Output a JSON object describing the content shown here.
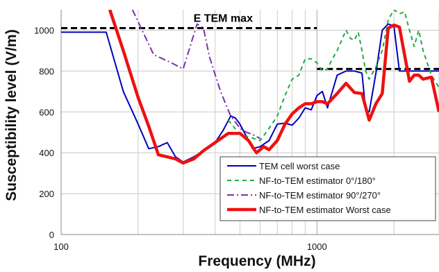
{
  "chart_data": {
    "type": "line",
    "xlabel": "Frequency (MHz)",
    "ylabel": "Susceptibility level (V/m)",
    "x_scale": "log",
    "xlim": [
      100,
      3000
    ],
    "ylim": [
      0,
      1100
    ],
    "x_ticks": [
      100,
      1000
    ],
    "y_ticks": [
      0,
      200,
      400,
      600,
      800,
      1000
    ],
    "grid": true,
    "legend_position": "bottom-right",
    "annotations": [
      {
        "text": "E TEM max",
        "x": 430,
        "y": 1040
      }
    ],
    "reference_lines": [
      {
        "name": "E TEM max (low band)",
        "x": [
          100,
          1000
        ],
        "y": 1010,
        "color": "#000000"
      },
      {
        "name": "E TEM max (high band)",
        "x": [
          1000,
          3000
        ],
        "y": 810,
        "color": "#000000"
      }
    ],
    "series": [
      {
        "name": "TEM cell worst case",
        "color": "#0000bb",
        "dash": "solid",
        "x": [
          100,
          150,
          175,
          200,
          220,
          240,
          260,
          280,
          300,
          330,
          360,
          400,
          430,
          460,
          480,
          500,
          530,
          560,
          600,
          650,
          700,
          750,
          800,
          850,
          900,
          950,
          1000,
          1050,
          1100,
          1200,
          1300,
          1400,
          1500,
          1550,
          1600,
          1700,
          1800,
          1900,
          2000,
          2100,
          2200,
          2500,
          3000
        ],
        "y": [
          990,
          990,
          700,
          540,
          420,
          430,
          450,
          380,
          355,
          380,
          410,
          450,
          510,
          580,
          570,
          540,
          480,
          420,
          430,
          460,
          540,
          545,
          535,
          570,
          620,
          610,
          680,
          700,
          620,
          780,
          800,
          800,
          790,
          610,
          600,
          790,
          1000,
          1030,
          1020,
          800,
          800,
          800,
          800
        ]
      },
      {
        "name": "NF-to-TEM estimator 0°/180°",
        "color": "#22aa44",
        "dash": "6,5",
        "x": [
          450,
          500,
          550,
          600,
          650,
          700,
          750,
          800,
          850,
          900,
          950,
          1000,
          1050,
          1100,
          1150,
          1200,
          1300,
          1350,
          1400,
          1450,
          1500,
          1550,
          1600,
          1700,
          1800,
          1900,
          2000,
          2100,
          2200,
          2300,
          2400,
          2500,
          2600,
          2800,
          3000
        ],
        "y": [
          560,
          490,
          475,
          460,
          520,
          580,
          680,
          760,
          780,
          860,
          860,
          840,
          800,
          810,
          860,
          900,
          1000,
          960,
          950,
          990,
          900,
          800,
          760,
          820,
          900,
          1050,
          1100,
          1080,
          1090,
          1000,
          920,
          1000,
          900,
          780,
          720
        ]
      },
      {
        "name": "NF-to-TEM estimator 90°/270°",
        "color": "#7733aa",
        "dash": "10,4,2,4",
        "x": [
          190,
          230,
          270,
          300,
          340,
          360,
          380,
          420,
          460,
          500,
          530,
          560,
          600
        ],
        "y": [
          1100,
          880,
          840,
          810,
          1030,
          1010,
          870,
          700,
          580,
          520,
          500,
          490,
          470
        ]
      },
      {
        "name": "NF-to-TEM estimator Worst case",
        "color": "#ee1111",
        "dash": "solid",
        "x": [
          155,
          175,
          200,
          220,
          240,
          260,
          280,
          300,
          330,
          360,
          400,
          450,
          500,
          540,
          580,
          620,
          650,
          700,
          750,
          800,
          850,
          900,
          950,
          1000,
          1050,
          1100,
          1200,
          1300,
          1400,
          1500,
          1600,
          1700,
          1800,
          1900,
          2000,
          2100,
          2200,
          2300,
          2400,
          2500,
          2600,
          2800,
          3000
        ],
        "y": [
          1100,
          900,
          670,
          530,
          390,
          380,
          370,
          350,
          370,
          410,
          450,
          495,
          495,
          460,
          400,
          430,
          415,
          460,
          540,
          590,
          620,
          640,
          640,
          650,
          650,
          640,
          690,
          740,
          695,
          690,
          560,
          640,
          690,
          1010,
          1025,
          1015,
          880,
          750,
          780,
          780,
          760,
          770,
          600
        ]
      }
    ]
  }
}
